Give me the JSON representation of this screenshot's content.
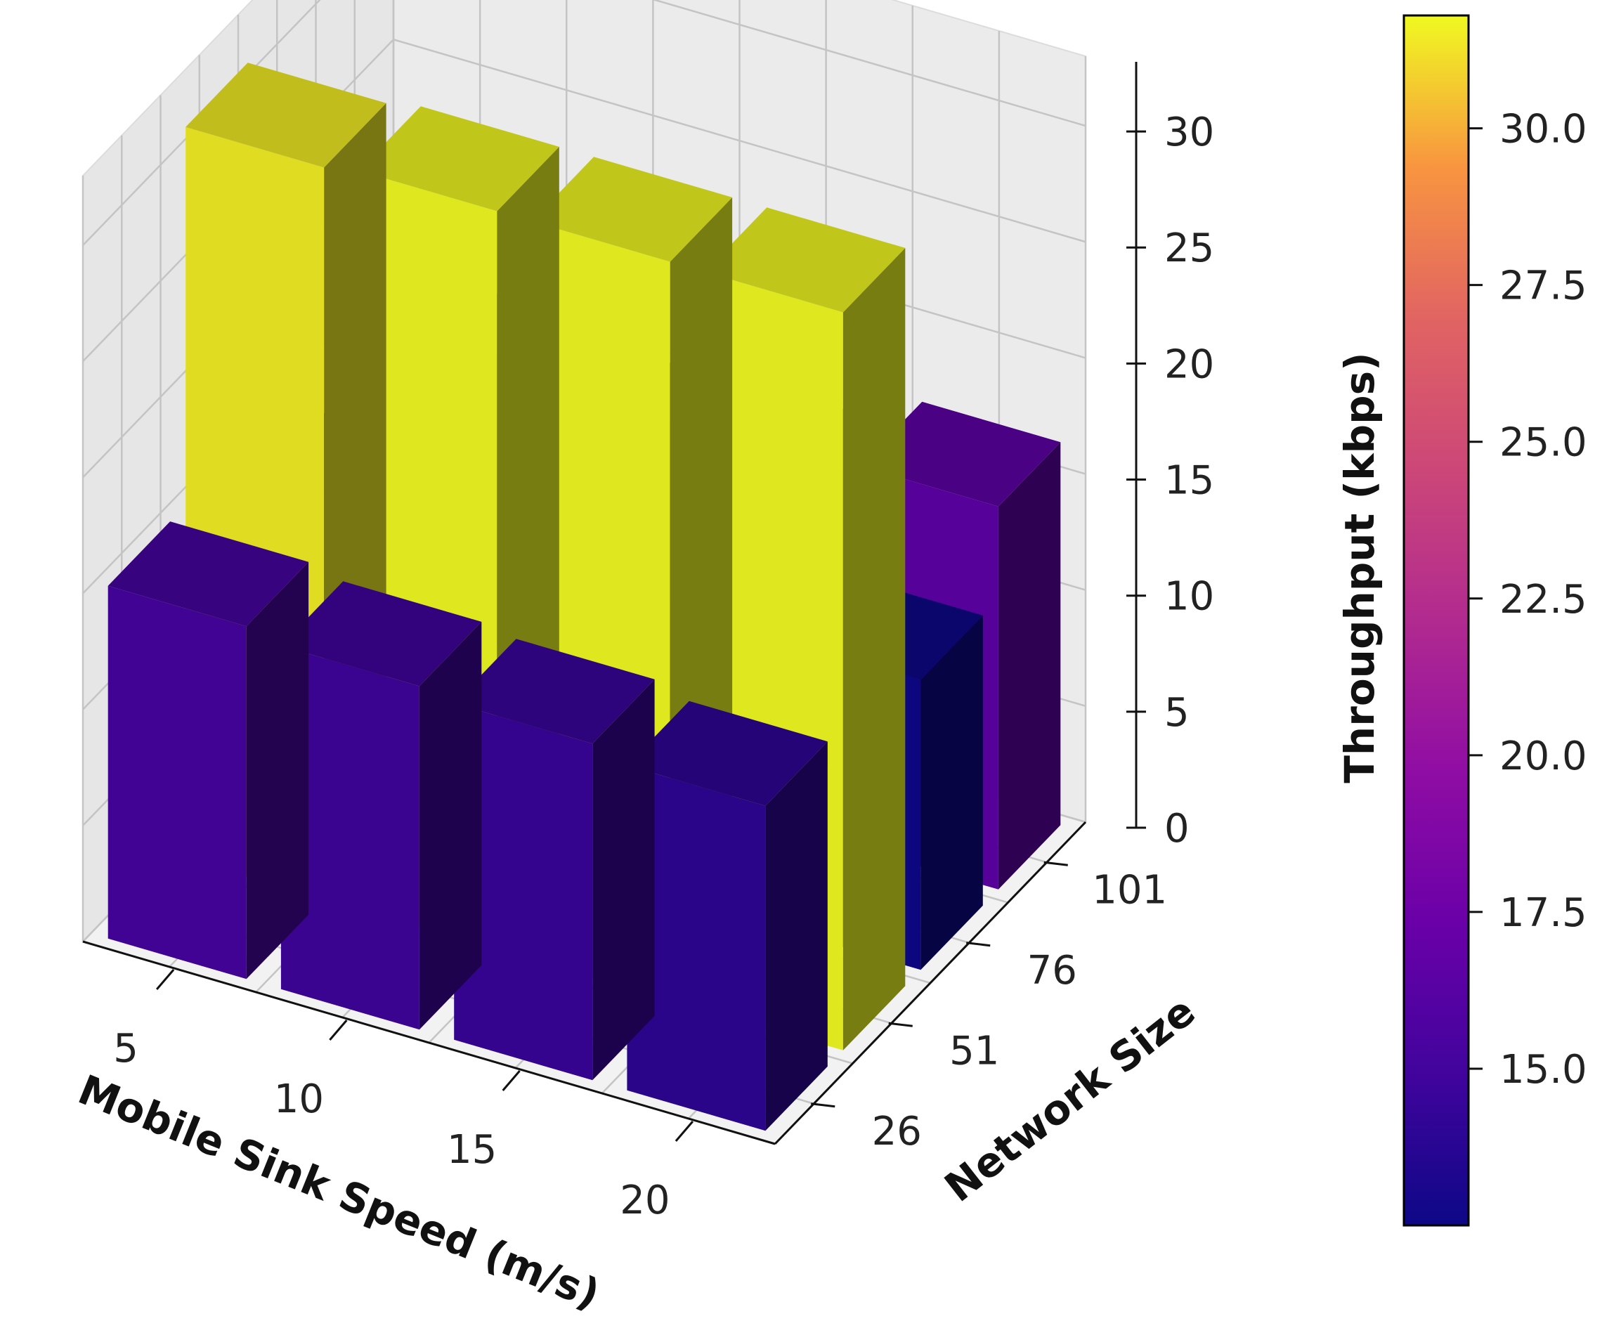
{
  "chart_data": {
    "type": "bar3d",
    "title": "",
    "xlabel": "Mobile Sink Speed (m/s)",
    "ylabel": "Network Size",
    "zlabel": "Throughput (kbps)",
    "x_categories": [
      "5",
      "10",
      "15",
      "20"
    ],
    "y_categories": [
      "26",
      "51",
      "76",
      "101"
    ],
    "zticks": [
      "0",
      "5",
      "10",
      "15",
      "20",
      "25",
      "30"
    ],
    "zlim": [
      0,
      33
    ],
    "series": [
      {
        "name": "26",
        "values": [
          15.2,
          14.8,
          14.5,
          14.0
        ]
      },
      {
        "name": "51",
        "values": [
          31.5,
          31.8,
          31.8,
          31.8
        ]
      },
      {
        "name": "76",
        "values": [
          13.0,
          12.8,
          12.8,
          12.5
        ]
      },
      {
        "name": "101",
        "values": [
          15.8,
          15.0,
          15.2,
          16.5
        ]
      }
    ],
    "colorbar": {
      "colormap": "plasma",
      "range": [
        12.5,
        31.8
      ],
      "ticks": [
        "15.0",
        "17.5",
        "20.0",
        "22.5",
        "25.0",
        "27.5",
        "30.0"
      ],
      "tick_values": [
        15.0,
        17.5,
        20.0,
        22.5,
        25.0,
        27.5,
        30.0
      ]
    },
    "grid": true
  }
}
